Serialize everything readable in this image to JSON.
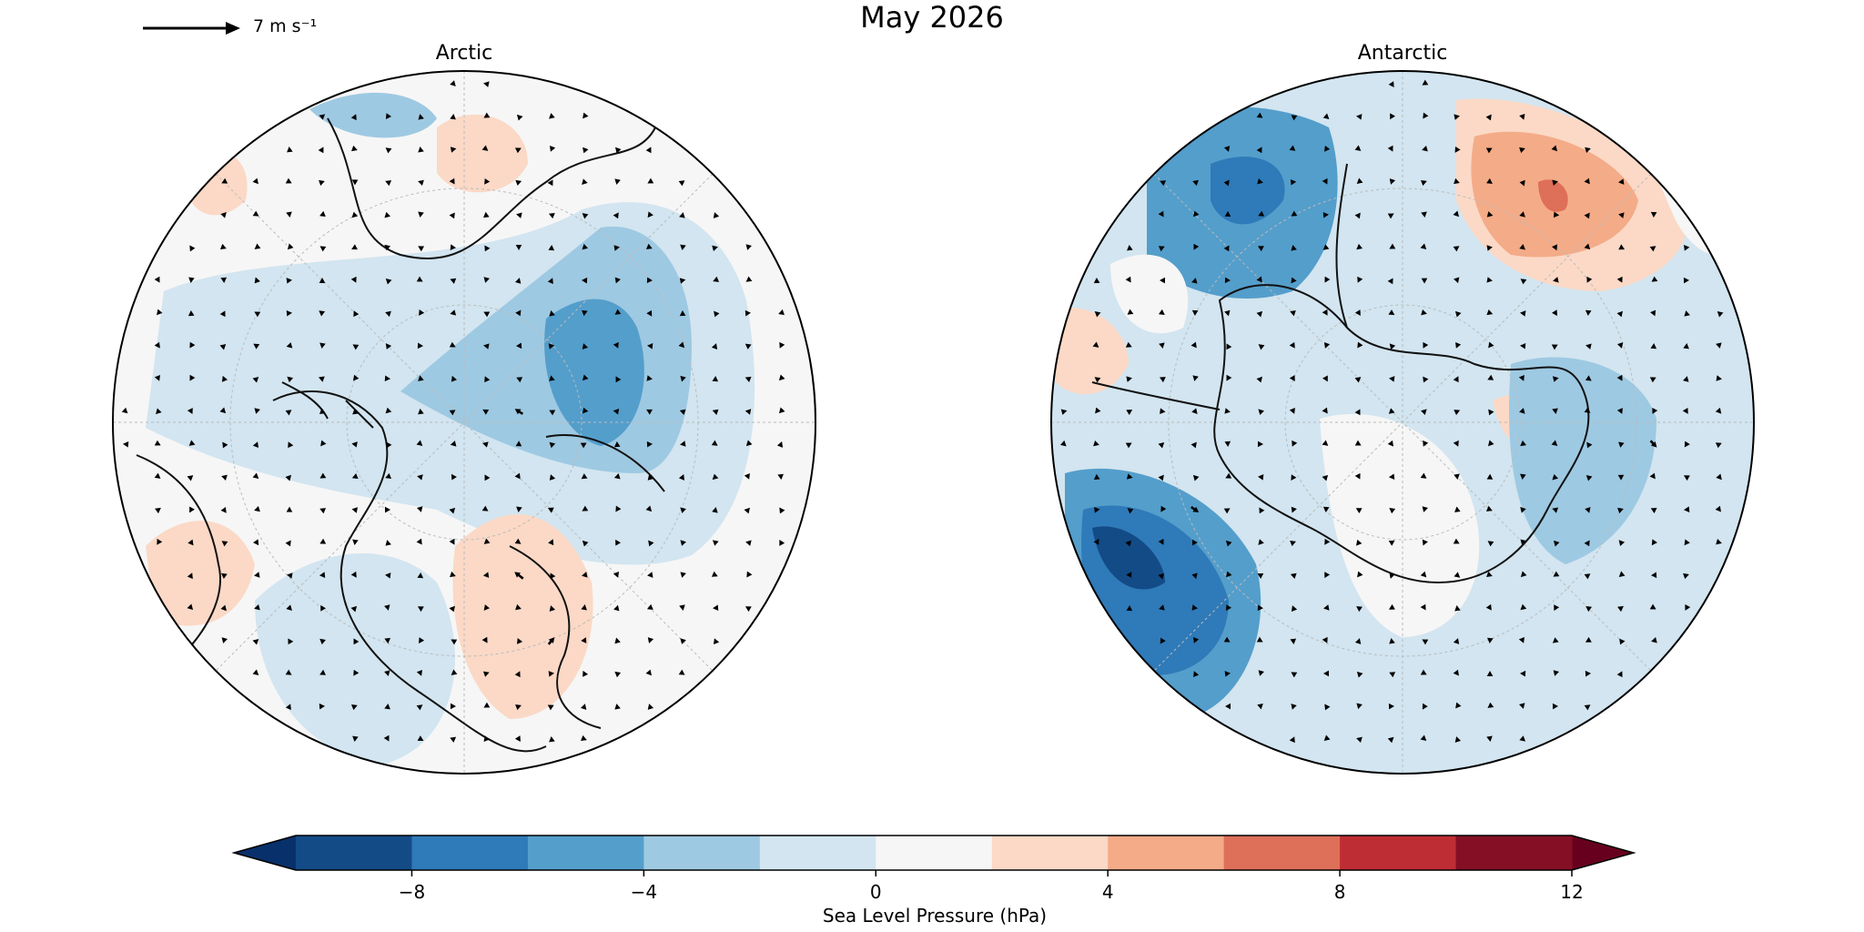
{
  "figure": {
    "title": "May 2026",
    "quiver_key": {
      "label": "7 m s⁻¹",
      "reference_speed_ms": 7
    }
  },
  "panels": [
    {
      "id": "arctic",
      "title": "Arctic"
    },
    {
      "id": "antarctic",
      "title": "Antarctic"
    }
  ],
  "colorbar": {
    "label": "Sea Level Pressure (hPa)",
    "levels": [
      -10,
      -8,
      -6,
      -4,
      -2,
      0,
      2,
      4,
      6,
      8,
      10,
      12
    ],
    "colors": [
      "#134b87",
      "#2f7ab8",
      "#549ecb",
      "#9ec9e2",
      "#d2e5f0",
      "#f6f6f6",
      "#fbd9c6",
      "#f4ab88",
      "#de6f58",
      "#bf2d34",
      "#850f25"
    ],
    "extend_low_color": "#08306b",
    "extend_high_color": "#67001f",
    "ticks": [
      -8,
      -4,
      0,
      4,
      8,
      12
    ],
    "tick_labels": [
      "−8",
      "−4",
      "0",
      "4",
      "8",
      "12"
    ]
  },
  "map_colors": {
    "coast": "#111111",
    "grid": "#bbbbbb",
    "arrow": "#000000"
  }
}
